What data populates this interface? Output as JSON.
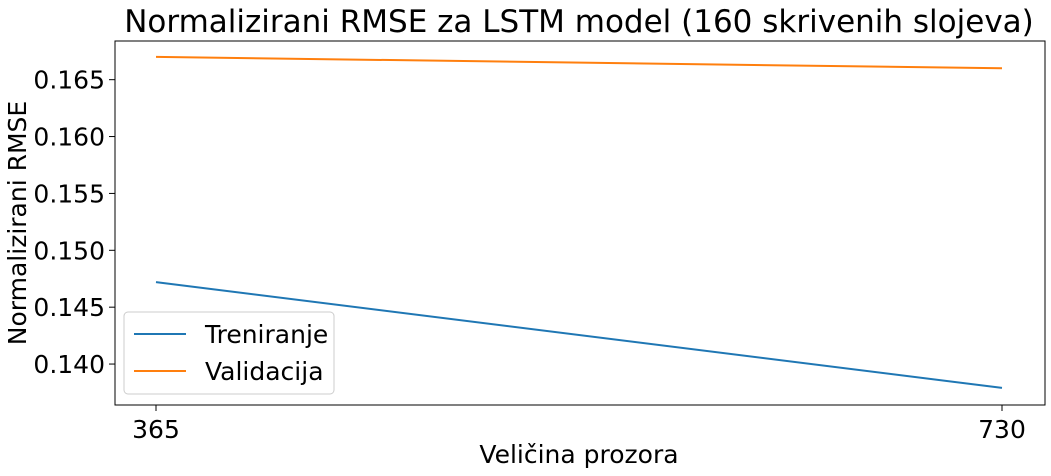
{
  "chart_data": {
    "type": "line",
    "title": "Normalizirani RMSE za LSTM model (160 skrivenih slojeva)",
    "xlabel": "Veličina prozora",
    "ylabel": "Normalizirani RMSE",
    "x": [
      365,
      730
    ],
    "x_ticks": [
      "365",
      "730"
    ],
    "y_ticks": [
      "0.140",
      "0.145",
      "0.150",
      "0.155",
      "0.160",
      "0.165"
    ],
    "ylim": [
      0.1364,
      0.1684
    ],
    "series": [
      {
        "name": "Treniranje",
        "color": "#1f77b4",
        "values": [
          0.1472,
          0.1379
        ]
      },
      {
        "name": "Validacija",
        "color": "#ff7f0e",
        "values": [
          0.167,
          0.166
        ]
      }
    ],
    "legend": "lower-left",
    "grid": false
  }
}
